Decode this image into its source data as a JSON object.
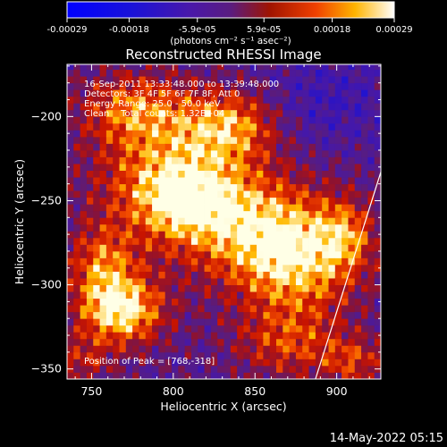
{
  "colorbar": {
    "tick_labels": [
      "-0.00029",
      "-0.00018",
      "-5.9e-05",
      "5.9e-05",
      "0.00018",
      "0.00029"
    ],
    "tick_values": [
      -0.00029,
      -0.00018,
      -5.9e-05,
      5.9e-05,
      0.00018,
      0.00029
    ],
    "range": [
      -0.00029,
      0.00029
    ],
    "units": "(photons cm⁻² s⁻¹ asec⁻²)"
  },
  "chart_data": {
    "type": "heatmap",
    "title": "Reconstructed RHESSI Image",
    "xlabel": "Heliocentric X (arcsec)",
    "ylabel": "Heliocentric Y (arcsec)",
    "xlim": [
      735,
      927
    ],
    "ylim": [
      -356,
      -169
    ],
    "x_ticks": [
      750,
      800,
      850,
      900
    ],
    "x_tick_labels": [
      "750",
      "800",
      "850",
      "900"
    ],
    "y_ticks": [
      -200,
      -250,
      -300,
      -350
    ],
    "y_tick_labels": [
      "−200",
      "−250",
      "−300",
      "−350"
    ],
    "info_lines": [
      "16-Sep-2011 13:33:48.000 to 13:39:48.000",
      "Detectors: 3F 4F 5F 6F 7F 8F, Att 0",
      "Energy Range: 25.0 - 50.0 keV",
      "Clean    Total counts: 1.32E+04"
    ],
    "peak_label": "Position of Peak = [768,-318]",
    "peak_position": [
      768,
      -318
    ],
    "limb_line": [
      [
        887,
        -356
      ],
      [
        927,
        -233
      ]
    ],
    "colormap": "rhessi: blue-negative, purple-zero, red-orange-yellow-white positive",
    "emission_regions": [
      {
        "x": 768,
        "y": -315,
        "sx": 18,
        "sy": 14,
        "amp": 1.0
      },
      {
        "x": 757,
        "y": -288,
        "sx": 14,
        "sy": 16,
        "amp": 0.6
      },
      {
        "x": 800,
        "y": -235,
        "sx": 32,
        "sy": 28,
        "amp": 0.75
      },
      {
        "x": 808,
        "y": -250,
        "sx": 20,
        "sy": 14,
        "amp": 0.5
      },
      {
        "x": 775,
        "y": -195,
        "sx": 22,
        "sy": 14,
        "amp": 0.55
      },
      {
        "x": 835,
        "y": -205,
        "sx": 20,
        "sy": 14,
        "amp": 0.65
      },
      {
        "x": 845,
        "y": -265,
        "sx": 30,
        "sy": 22,
        "amp": 0.55
      },
      {
        "x": 875,
        "y": -285,
        "sx": 26,
        "sy": 24,
        "amp": 0.85
      },
      {
        "x": 905,
        "y": -270,
        "sx": 12,
        "sy": 14,
        "amp": 0.5
      },
      {
        "x": 870,
        "y": -335,
        "sx": 22,
        "sy": 14,
        "amp": 0.45
      },
      {
        "x": 910,
        "y": -345,
        "sx": 14,
        "sy": 10,
        "amp": 0.45
      },
      {
        "x": 745,
        "y": -345,
        "sx": 12,
        "sy": 10,
        "amp": 0.35
      },
      {
        "x": 895,
        "y": -190,
        "sx": 30,
        "sy": 20,
        "amp": -0.25
      }
    ]
  },
  "footer": {
    "timestamp": "14-May-2022 05:15"
  }
}
